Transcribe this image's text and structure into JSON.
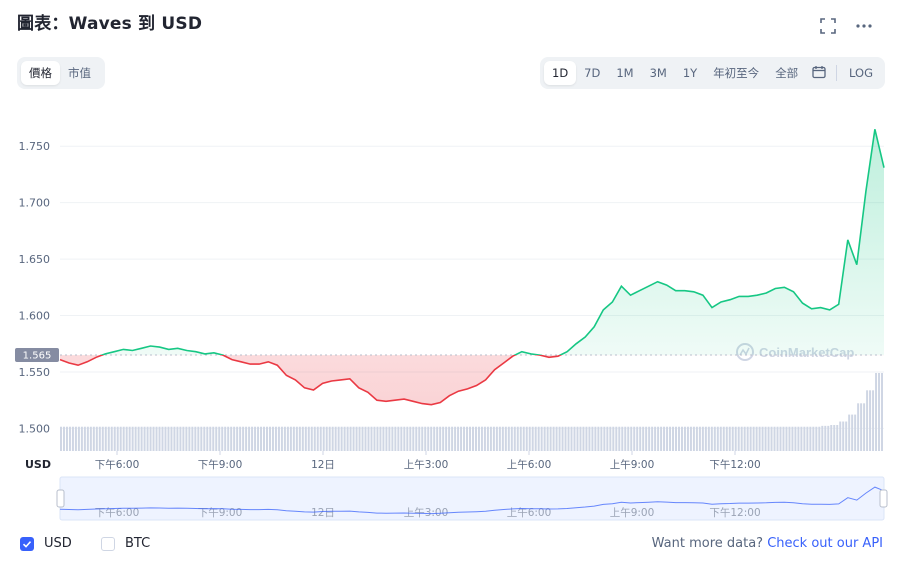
{
  "header": {
    "title": "圖表：Waves 到 USD",
    "icons": [
      "fullscreen-icon",
      "more-options-icon"
    ]
  },
  "metric_tabs": [
    {
      "label": "價格",
      "active": true
    },
    {
      "label": "市值",
      "active": false
    }
  ],
  "range_tabs": [
    {
      "label": "1D",
      "active": true
    },
    {
      "label": "7D",
      "active": false
    },
    {
      "label": "1M",
      "active": false
    },
    {
      "label": "3M",
      "active": false
    },
    {
      "label": "1Y",
      "active": false
    },
    {
      "label": "年初至今",
      "active": false
    },
    {
      "label": "全部",
      "active": false
    }
  ],
  "calendar_icon": "calendar-icon",
  "log_label": "LOG",
  "watermark": "CoinMarketCap",
  "chart_data": {
    "type": "line",
    "title": "",
    "xlabel": "",
    "ylabel": "USD",
    "ylim": [
      1.48,
      1.775
    ],
    "y_ticks": [
      "1.750",
      "1.700",
      "1.650",
      "1.600",
      "1.550",
      "1.500"
    ],
    "x_ticks": [
      "下午6:00",
      "下午9:00",
      "12日",
      "上午3:00",
      "上午6:00",
      "上午9:00",
      "下午12:00"
    ],
    "reference_value": 1.565,
    "reference_label": "1.565",
    "above_color": "#16c784",
    "below_color": "#ea3943",
    "grid": true,
    "series": [
      {
        "values": [
          1.561,
          1.558,
          1.556,
          1.559,
          1.563,
          1.566,
          1.568,
          1.57,
          1.569,
          1.571,
          1.573,
          1.572,
          1.57,
          1.571,
          1.569,
          1.568,
          1.566,
          1.567,
          1.565,
          1.561,
          1.559,
          1.557,
          1.557,
          1.559,
          1.556,
          1.547,
          1.543,
          1.536,
          1.534,
          1.54,
          1.542,
          1.543,
          1.544,
          1.536,
          1.532,
          1.525,
          1.524,
          1.525,
          1.526,
          1.524,
          1.522,
          1.521,
          1.523,
          1.529,
          1.533,
          1.535,
          1.538,
          1.543,
          1.552,
          1.558,
          1.564,
          1.568,
          1.566,
          1.565,
          1.563,
          1.564,
          1.568,
          1.575,
          1.581,
          1.59,
          1.605,
          1.612,
          1.626,
          1.618,
          1.622,
          1.626,
          1.63,
          1.627,
          1.622,
          1.622,
          1.621,
          1.618,
          1.607,
          1.612,
          1.614,
          1.617,
          1.617,
          1.618,
          1.62,
          1.624,
          1.625,
          1.621,
          1.611,
          1.606,
          1.607,
          1.605,
          1.61,
          1.667,
          1.645,
          1.71,
          1.765,
          1.731
        ]
      }
    ],
    "volume": [
      0.28,
      0.28,
      0.28,
      0.28,
      0.28,
      0.28,
      0.28,
      0.28,
      0.28,
      0.28,
      0.28,
      0.28,
      0.28,
      0.28,
      0.28,
      0.28,
      0.28,
      0.28,
      0.28,
      0.28,
      0.28,
      0.28,
      0.28,
      0.28,
      0.28,
      0.28,
      0.28,
      0.28,
      0.28,
      0.28,
      0.28,
      0.28,
      0.28,
      0.28,
      0.28,
      0.28,
      0.28,
      0.28,
      0.28,
      0.28,
      0.28,
      0.28,
      0.28,
      0.28,
      0.28,
      0.28,
      0.28,
      0.28,
      0.28,
      0.28,
      0.28,
      0.28,
      0.28,
      0.28,
      0.28,
      0.28,
      0.28,
      0.28,
      0.28,
      0.28,
      0.28,
      0.28,
      0.28,
      0.28,
      0.28,
      0.28,
      0.28,
      0.28,
      0.28,
      0.28,
      0.28,
      0.28,
      0.28,
      0.28,
      0.28,
      0.28,
      0.28,
      0.28,
      0.28,
      0.28,
      0.28,
      0.28,
      0.28,
      0.28,
      0.28,
      0.29,
      0.3,
      0.34,
      0.42,
      0.55,
      0.7,
      0.9
    ]
  },
  "legend": [
    {
      "label": "USD",
      "checked": true
    },
    {
      "label": "BTC",
      "checked": false
    }
  ],
  "footer": {
    "prefix": "Want more data?",
    "link": "Check out our API"
  }
}
